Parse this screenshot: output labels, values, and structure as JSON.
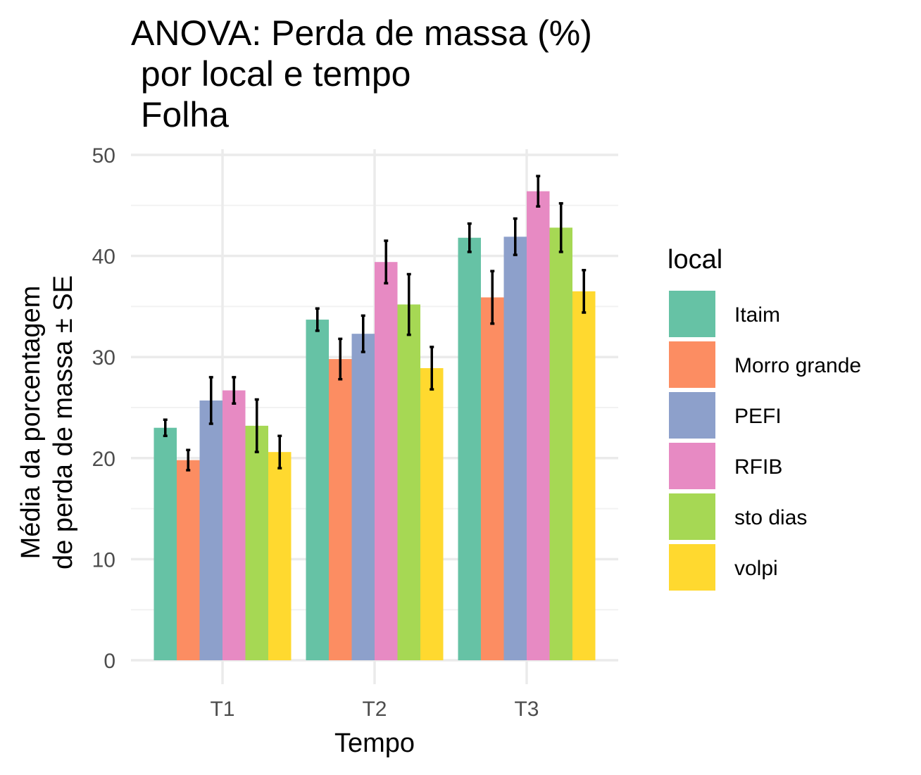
{
  "chart_data": {
    "type": "bar",
    "title_lines": [
      "ANOVA: Perda de massa (%)",
      " por local e tempo",
      " Folha"
    ],
    "xlabel": "Tempo",
    "ylabel_lines": [
      "Média da porcentagem",
      "de perda de massa ± SE"
    ],
    "ylim": [
      0,
      50
    ],
    "yticks": [
      "0",
      "10",
      "20",
      "30",
      "40",
      "50"
    ],
    "categories": [
      "T1",
      "T2",
      "T3"
    ],
    "legend_title": "local",
    "legend_position": "right",
    "grid": true,
    "series": [
      {
        "name": "Itaim",
        "color": "#66c2a5",
        "values": [
          23.0,
          33.7,
          41.8
        ],
        "se": [
          0.8,
          1.1,
          1.4
        ]
      },
      {
        "name": "Morro grande",
        "color": "#fc8d62",
        "values": [
          19.8,
          29.8,
          35.9
        ],
        "se": [
          1.0,
          2.0,
          2.6
        ]
      },
      {
        "name": "PEFI",
        "color": "#8da0cb",
        "values": [
          25.7,
          32.3,
          41.9
        ],
        "se": [
          2.3,
          1.8,
          1.8
        ]
      },
      {
        "name": "RFIB",
        "color": "#e78ac3",
        "values": [
          26.7,
          39.4,
          46.4
        ],
        "se": [
          1.3,
          2.1,
          1.5
        ]
      },
      {
        "name": "sto dias",
        "color": "#a6d854",
        "values": [
          23.2,
          35.2,
          42.8
        ],
        "se": [
          2.6,
          3.0,
          2.4
        ]
      },
      {
        "name": "volpi",
        "color": "#ffd92f",
        "values": [
          20.6,
          28.9,
          36.5
        ],
        "se": [
          1.6,
          2.1,
          2.1
        ]
      }
    ]
  }
}
